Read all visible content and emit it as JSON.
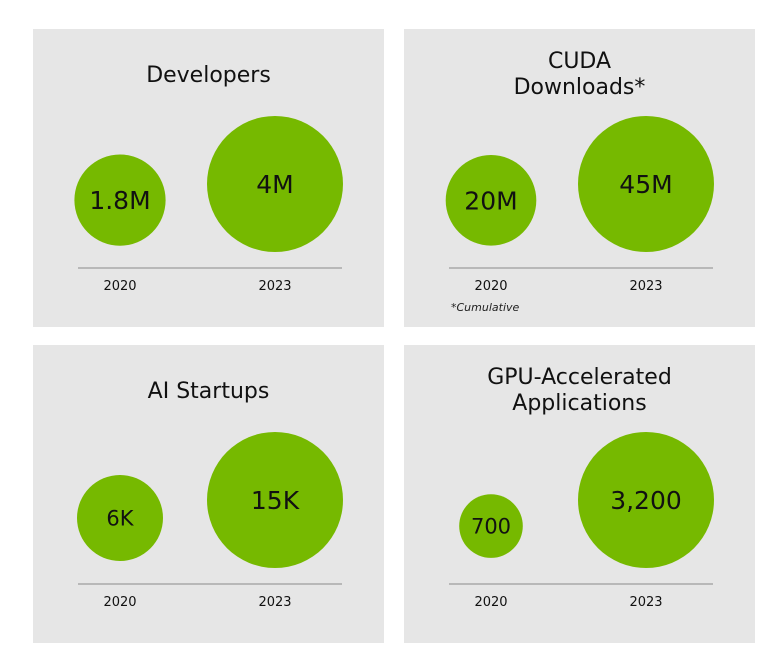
{
  "colors": {
    "panel_bg": "#e6e6e6",
    "bubble": "#76b900",
    "text": "#111111",
    "axis": "#8a8a8a"
  },
  "chart_data": [
    {
      "type": "bubble",
      "title": "Developers",
      "categories": [
        "2020",
        "2023"
      ],
      "values": [
        1.8,
        4.0
      ],
      "unit": "M",
      "data_labels": [
        "1.8M",
        "4M"
      ]
    },
    {
      "type": "bubble",
      "title": "CUDA Downloads*",
      "title_lines": [
        "CUDA",
        "Downloads*"
      ],
      "categories": [
        "2020",
        "2023"
      ],
      "values": [
        20,
        45
      ],
      "unit": "M",
      "data_labels": [
        "20M",
        "45M"
      ],
      "footnote": "*Cumulative"
    },
    {
      "type": "bubble",
      "title": "AI Startups",
      "categories": [
        "2020",
        "2023"
      ],
      "values": [
        6,
        15
      ],
      "unit": "K",
      "data_labels": [
        "6K",
        "15K"
      ]
    },
    {
      "type": "bubble",
      "title": "GPU-Accelerated Applications",
      "title_lines": [
        "GPU-Accelerated",
        "Applications"
      ],
      "categories": [
        "2020",
        "2023"
      ],
      "values": [
        700,
        3200
      ],
      "unit": "",
      "data_labels": [
        "700",
        "3,200"
      ]
    }
  ]
}
